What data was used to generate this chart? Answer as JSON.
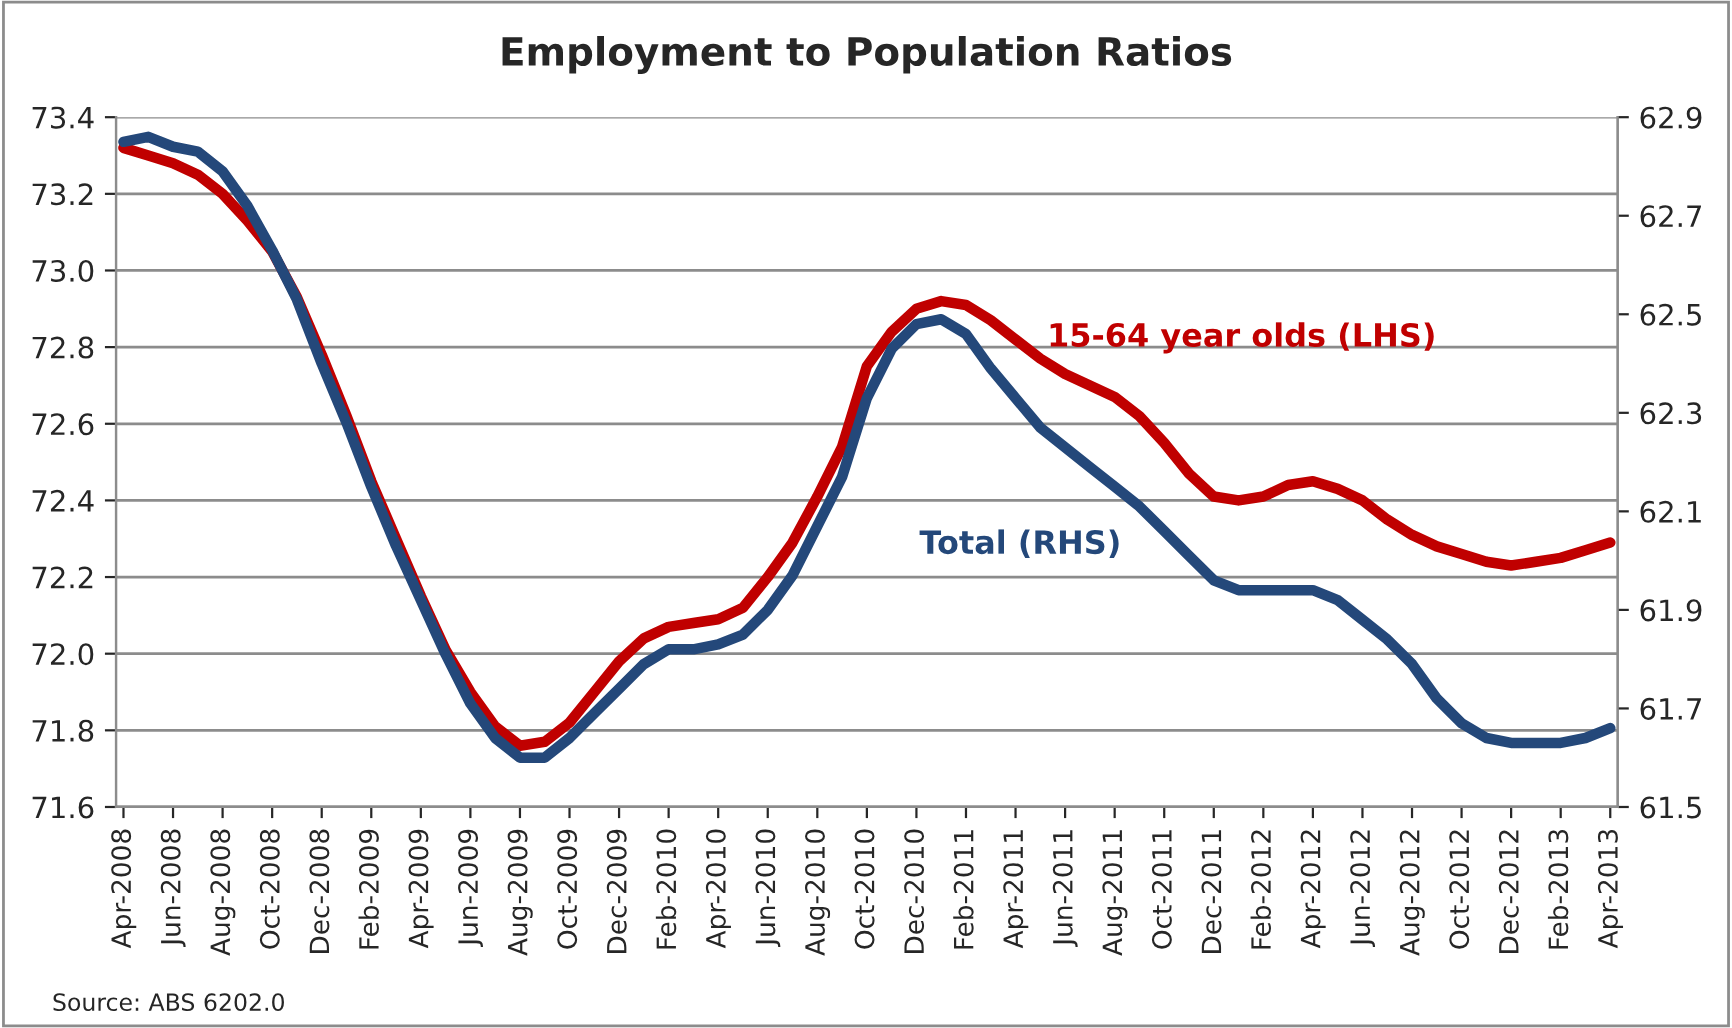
{
  "chart_data": {
    "type": "line",
    "title": "Employment to Population Ratios",
    "categories": [
      "Apr-2008",
      null,
      "Jun-2008",
      null,
      "Aug-2008",
      null,
      "Oct-2008",
      null,
      "Dec-2008",
      null,
      "Feb-2009",
      null,
      "Apr-2009",
      null,
      "Jun-2009",
      null,
      "Aug-2009",
      null,
      "Oct-2009",
      null,
      "Dec-2009",
      null,
      "Feb-2010",
      null,
      "Apr-2010",
      null,
      "Jun-2010",
      null,
      "Aug-2010",
      null,
      "Oct-2010",
      null,
      "Dec-2010",
      null,
      "Feb-2011",
      null,
      "Apr-2011",
      null,
      "Jun-2011",
      null,
      "Aug-2011",
      null,
      "Oct-2011",
      null,
      "Dec-2011",
      null,
      "Feb-2012",
      null,
      "Apr-2012",
      null,
      "Jun-2012",
      null,
      "Aug-2012",
      null,
      "Oct-2012",
      null,
      "Dec-2012",
      null,
      "Feb-2013",
      null,
      "Apr-2013"
    ],
    "series": [
      {
        "name": "15-64 year olds (LHS)",
        "color": "#c00000",
        "values": [
          73.32,
          73.3,
          73.28,
          73.25,
          73.2,
          73.13,
          73.05,
          72.93,
          72.78,
          72.62,
          72.45,
          72.3,
          72.15,
          72.01,
          71.9,
          71.81,
          71.76,
          71.77,
          71.82,
          71.9,
          71.98,
          72.04,
          72.07,
          72.08,
          72.09,
          72.12,
          72.2,
          72.29,
          72.41,
          72.54,
          72.75,
          72.84,
          72.9,
          72.92,
          72.91,
          72.87,
          72.82,
          72.77,
          72.73,
          72.7,
          72.67,
          72.62,
          72.55,
          72.47,
          72.41,
          72.4,
          72.41,
          72.44,
          72.45,
          72.43,
          72.4,
          72.35,
          72.31,
          72.28,
          72.26,
          72.24,
          72.23,
          72.24,
          72.25,
          72.27,
          72.29
        ]
      },
      {
        "name": "Total (RHS)",
        "color": "#24487a",
        "axis": "y2",
        "values": [
          62.85,
          62.86,
          62.84,
          62.83,
          62.79,
          62.72,
          62.63,
          62.53,
          62.4,
          62.28,
          62.15,
          62.03,
          61.92,
          61.81,
          61.71,
          61.64,
          61.6,
          61.6,
          61.64,
          61.69,
          61.74,
          61.79,
          61.82,
          61.82,
          61.83,
          61.85,
          61.9,
          61.97,
          62.07,
          62.17,
          62.33,
          62.43,
          62.48,
          62.49,
          62.46,
          62.39,
          62.33,
          62.27,
          62.23,
          62.19,
          62.15,
          62.11,
          62.06,
          62.01,
          61.96,
          61.94,
          61.94,
          61.94,
          61.94,
          61.92,
          61.88,
          61.84,
          61.79,
          61.72,
          61.67,
          61.64,
          61.63,
          61.63,
          61.63,
          61.64,
          61.66
        ]
      }
    ],
    "ylim": [
      71.6,
      73.4
    ],
    "yticks": [
      {
        "value": 71.6,
        "label": "71.6"
      },
      {
        "value": 71.8,
        "label": "71.8"
      },
      {
        "value": 72.0,
        "label": "72.0"
      },
      {
        "value": 72.2,
        "label": "72.2"
      },
      {
        "value": 72.4,
        "label": "72.4"
      },
      {
        "value": 72.6,
        "label": "72.6"
      },
      {
        "value": 72.8,
        "label": "72.8"
      },
      {
        "value": 73.0,
        "label": "73.0"
      },
      {
        "value": 73.2,
        "label": "73.2"
      },
      {
        "value": 73.4,
        "label": "73.4"
      }
    ],
    "y2lim": [
      61.5,
      62.9
    ],
    "y2ticks": [
      61.5,
      61.7,
      61.9,
      62.1,
      62.3,
      62.5,
      62.7,
      62.9
    ],
    "grid": "y",
    "legend": false,
    "annotations": [
      "Source: ABS 6202.0"
    ]
  }
}
